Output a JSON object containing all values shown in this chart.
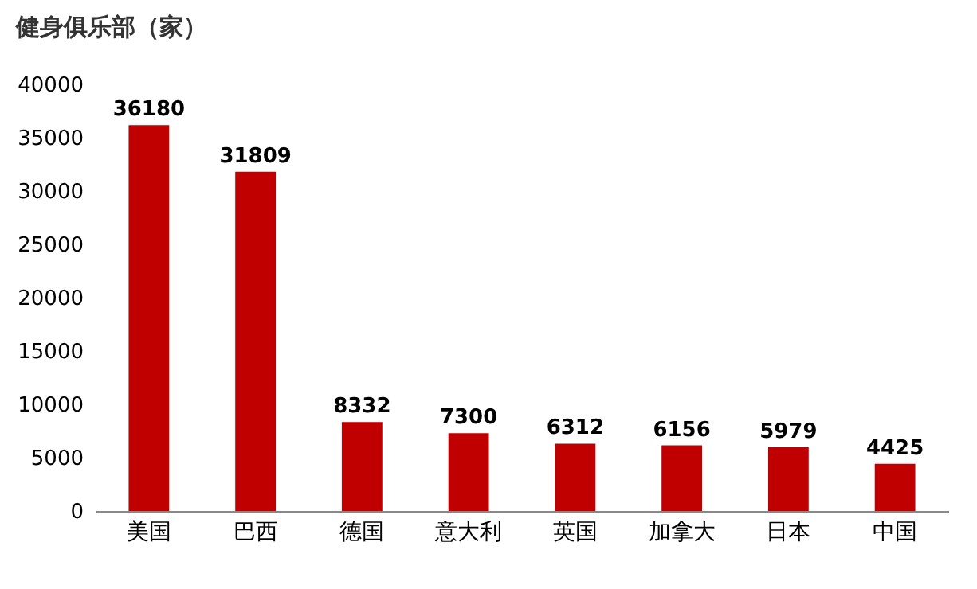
{
  "chart_data": {
    "type": "bar",
    "title": "健身俱乐部（家）",
    "categories": [
      "美国",
      "巴西",
      "德国",
      "意大利",
      "英国",
      "加拿大",
      "日本",
      "中国"
    ],
    "values": [
      36180,
      31809,
      8332,
      7300,
      6312,
      6156,
      5979,
      4425
    ],
    "color": "#c00000",
    "ylim": [
      0,
      40000
    ],
    "yticks": [
      0,
      5000,
      10000,
      15000,
      20000,
      25000,
      30000,
      35000,
      40000
    ],
    "grid": false,
    "data_labels": true
  }
}
